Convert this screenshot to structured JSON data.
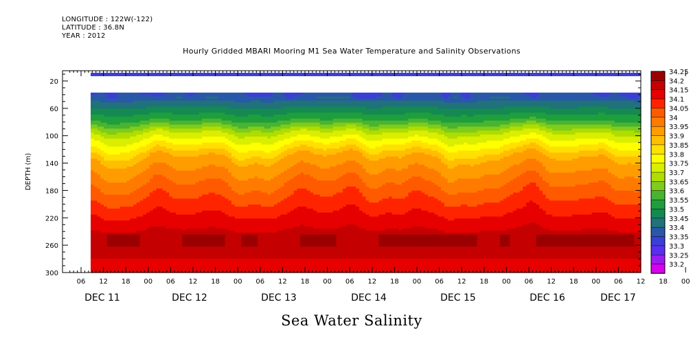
{
  "header": {
    "longitude": "LONGITUDE : 122W(-122)",
    "latitude": "LATITUDE : 36.8N",
    "year": "YEAR : 2012"
  },
  "title": "Hourly Gridded MBARI Mooring M1 Sea Water Temperature and Salinity Observations",
  "bottom_title": "Sea Water Salinity",
  "chart_data": {
    "type": "heatmap",
    "title": "Hourly Gridded MBARI Mooring M1 Sea Water Temperature and Salinity Observations",
    "xlabel": "",
    "ylabel": "DEPTH (m)",
    "ylim": [
      300,
      0
    ],
    "y_ticks": [
      20,
      60,
      100,
      140,
      180,
      220,
      260,
      300
    ],
    "x_hour_ticks": [
      "06",
      "12",
      "18",
      "00",
      "06",
      "12",
      "18",
      "00",
      "06",
      "12",
      "18",
      "00",
      "06",
      "12",
      "18",
      "00",
      "06",
      "12",
      "18",
      "00",
      "06",
      "12",
      "18",
      "00",
      "06",
      "12",
      "18",
      "00",
      "06",
      "12"
    ],
    "x_day_labels": [
      "DEC 11",
      "DEC 12",
      "DEC 13",
      "DEC 14",
      "DEC 15",
      "DEC 16",
      "DEC 17"
    ],
    "colorbar_levels": [
      "34.25",
      "34.2",
      "34.15",
      "34.1",
      "34.05",
      "34",
      "33.95",
      "33.9",
      "33.85",
      "33.8",
      "33.75",
      "33.7",
      "33.65",
      "33.6",
      "33.55",
      "33.5",
      "33.45",
      "33.4",
      "33.35",
      "33.3",
      "33.25",
      "33.2"
    ],
    "colorbar_colors": [
      "#9b0000",
      "#c40000",
      "#e60000",
      "#ff2400",
      "#ff5a00",
      "#ff7b00",
      "#ff9c00",
      "#ffbf00",
      "#ffe000",
      "#ffff00",
      "#d9ee00",
      "#b0dd00",
      "#7fcc1c",
      "#48b431",
      "#1f9e3c",
      "#148a52",
      "#21727a",
      "#2a58a8",
      "#3a3fd6",
      "#5a2ef0",
      "#9a1cf0",
      "#d800f0"
    ],
    "surface_band_depth_m": [
      8,
      13
    ],
    "data_start_depth_m": 37,
    "data_start_hour": "Dec 10 ~09",
    "depth_profile_salinity": [
      {
        "depth": 40,
        "value": 33.4
      },
      {
        "depth": 60,
        "value": 33.5
      },
      {
        "depth": 80,
        "value": 33.6
      },
      {
        "depth": 100,
        "value": 33.75
      },
      {
        "depth": 120,
        "value": 33.85
      },
      {
        "depth": 140,
        "value": 33.95
      },
      {
        "depth": 160,
        "value": 34.0
      },
      {
        "depth": 180,
        "value": 34.05
      },
      {
        "depth": 200,
        "value": 34.1
      },
      {
        "depth": 220,
        "value": 34.15
      },
      {
        "depth": 240,
        "value": 34.2
      },
      {
        "depth": 260,
        "value": 34.25
      },
      {
        "depth": 280,
        "value": 34.2
      },
      {
        "depth": 300,
        "value": 34.15
      }
    ]
  }
}
